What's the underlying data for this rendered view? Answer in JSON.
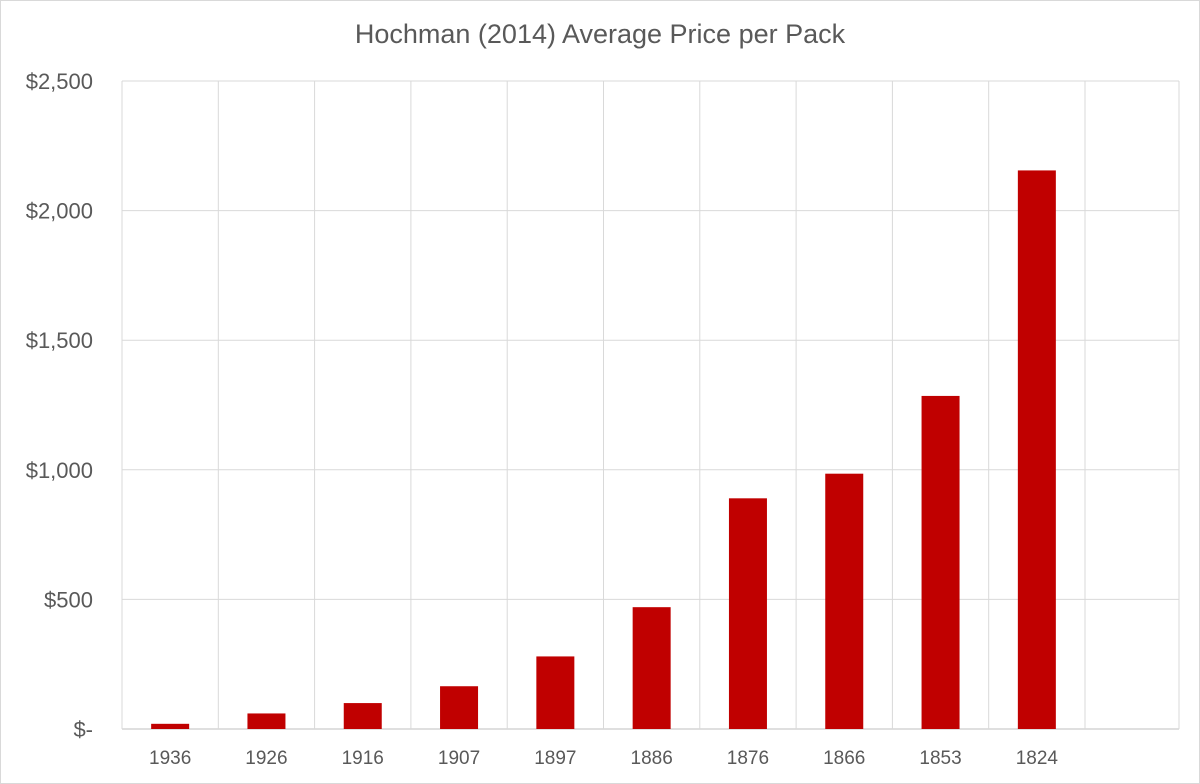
{
  "chart_data": {
    "type": "bar",
    "title": "Hochman (2014)  Average Price per Pack",
    "xlabel": "",
    "ylabel": "",
    "categories": [
      "1936",
      "1926",
      "1916",
      "1907",
      "1897",
      "1886",
      "1876",
      "1866",
      "1853",
      "1824"
    ],
    "series": [
      {
        "values": [
          20,
          60,
          100,
          165,
          280,
          470,
          890,
          985,
          1285,
          2155
        ],
        "color": "#c00000"
      }
    ],
    "ylim": [
      0,
      2500
    ],
    "yticks": [
      0,
      500,
      1000,
      1500,
      2000,
      2500
    ],
    "ytick_labels": [
      "$-",
      "$500",
      "$1,000",
      "$1,500",
      "$2,000",
      "$2,500"
    ],
    "grid": "vertical and horizontal",
    "legend": "none"
  }
}
